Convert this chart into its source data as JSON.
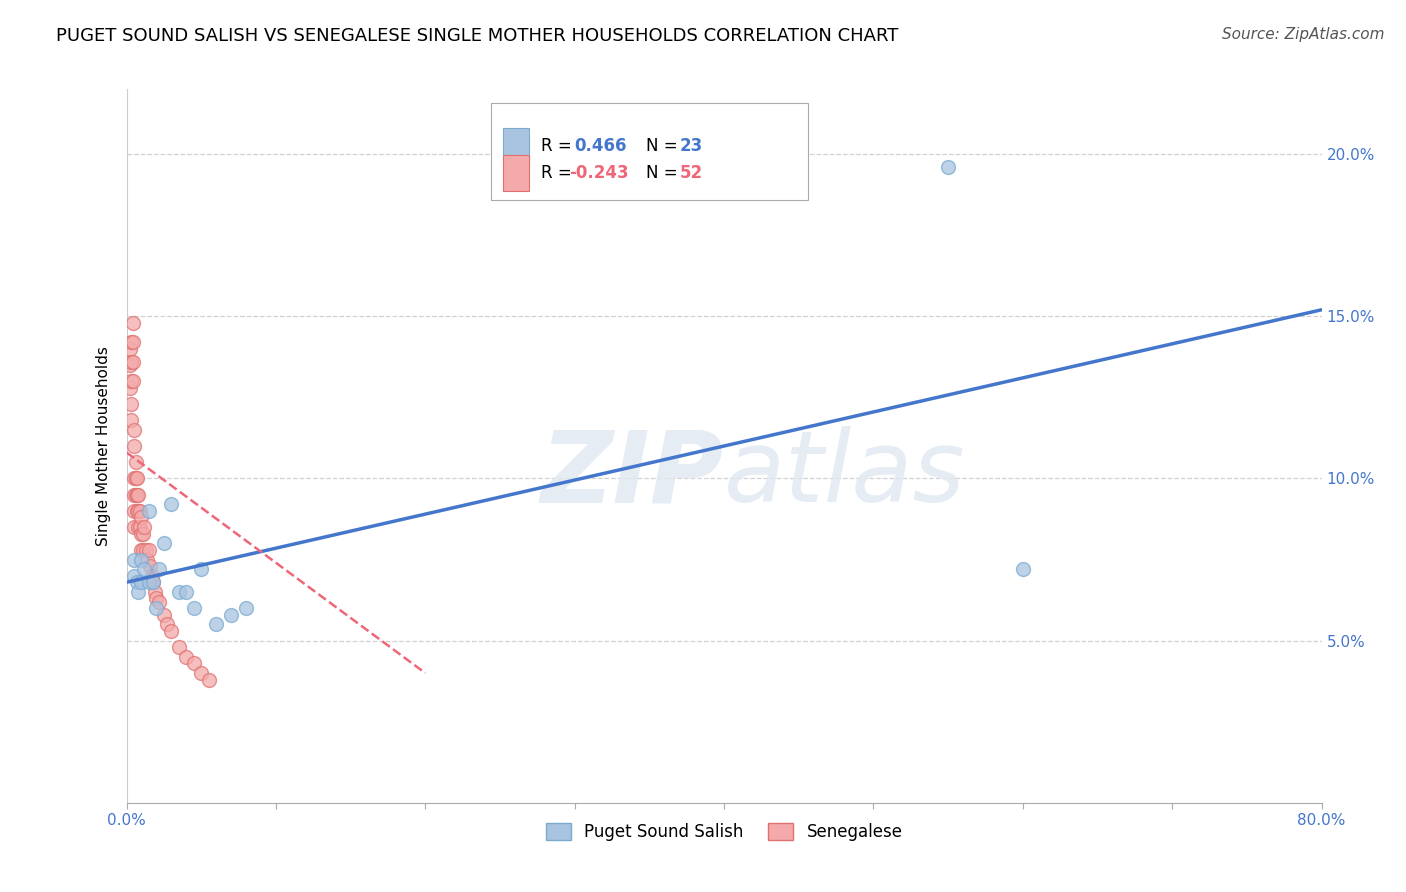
{
  "title": "PUGET SOUND SALISH VS SENEGALESE SINGLE MOTHER HOUSEHOLDS CORRELATION CHART",
  "source": "Source: ZipAtlas.com",
  "ylabel": "Single Mother Households",
  "watermark": "ZIPatlas",
  "xlim": [
    0.0,
    0.8
  ],
  "ylim": [
    0.0,
    0.22
  ],
  "xtick_positions": [
    0.0,
    0.1,
    0.2,
    0.3,
    0.4,
    0.5,
    0.6,
    0.7,
    0.8
  ],
  "xtick_labels": [
    "0.0%",
    "",
    "",
    "",
    "",
    "",
    "",
    "",
    "80.0%"
  ],
  "ytick_positions": [
    0.05,
    0.1,
    0.15,
    0.2
  ],
  "ytick_labels": [
    "5.0%",
    "10.0%",
    "15.0%",
    "20.0%"
  ],
  "blue_color": "#A8C4E0",
  "pink_color": "#F4AAAA",
  "blue_edge": "#7AAAD0",
  "pink_edge": "#E07070",
  "trend_blue": "#4477CC",
  "trend_pink": "#EE6677",
  "legend_label_blue": "Puget Sound Salish",
  "legend_label_pink": "Senegalese",
  "blue_scatter_x": [
    0.005,
    0.005,
    0.007,
    0.008,
    0.01,
    0.01,
    0.012,
    0.015,
    0.015,
    0.018,
    0.02,
    0.022,
    0.025,
    0.03,
    0.035,
    0.04,
    0.045,
    0.05,
    0.06,
    0.07,
    0.08,
    0.6,
    0.55
  ],
  "blue_scatter_y": [
    0.075,
    0.07,
    0.068,
    0.065,
    0.075,
    0.068,
    0.072,
    0.09,
    0.068,
    0.068,
    0.06,
    0.072,
    0.08,
    0.092,
    0.065,
    0.065,
    0.06,
    0.072,
    0.055,
    0.058,
    0.06,
    0.072,
    0.196
  ],
  "pink_scatter_x": [
    0.002,
    0.002,
    0.002,
    0.003,
    0.003,
    0.003,
    0.003,
    0.003,
    0.004,
    0.004,
    0.004,
    0.004,
    0.005,
    0.005,
    0.005,
    0.005,
    0.005,
    0.005,
    0.006,
    0.006,
    0.006,
    0.007,
    0.007,
    0.007,
    0.008,
    0.008,
    0.008,
    0.009,
    0.009,
    0.01,
    0.01,
    0.01,
    0.011,
    0.011,
    0.012,
    0.013,
    0.014,
    0.015,
    0.016,
    0.017,
    0.018,
    0.019,
    0.02,
    0.022,
    0.025,
    0.027,
    0.03,
    0.035,
    0.04,
    0.045,
    0.05,
    0.055
  ],
  "pink_scatter_y": [
    0.14,
    0.135,
    0.128,
    0.142,
    0.136,
    0.13,
    0.123,
    0.118,
    0.148,
    0.142,
    0.136,
    0.13,
    0.1,
    0.095,
    0.09,
    0.085,
    0.115,
    0.11,
    0.105,
    0.1,
    0.095,
    0.1,
    0.095,
    0.09,
    0.095,
    0.09,
    0.085,
    0.09,
    0.085,
    0.088,
    0.083,
    0.078,
    0.083,
    0.078,
    0.085,
    0.078,
    0.075,
    0.078,
    0.073,
    0.07,
    0.068,
    0.065,
    0.063,
    0.062,
    0.058,
    0.055,
    0.053,
    0.048,
    0.045,
    0.043,
    0.04,
    0.038
  ],
  "blue_trend_x": [
    0.0,
    0.8
  ],
  "blue_trend_y": [
    0.068,
    0.152
  ],
  "pink_trend_x": [
    0.0,
    0.2
  ],
  "pink_trend_y": [
    0.108,
    0.04
  ],
  "title_fontsize": 13,
  "axis_label_fontsize": 11,
  "tick_fontsize": 11,
  "legend_fontsize": 12,
  "source_fontsize": 11,
  "marker_size": 100,
  "background_color": "#FFFFFF",
  "grid_color": "#CCCCCC",
  "text_color_blue": "#4477CC",
  "text_color_pink": "#EE6677"
}
